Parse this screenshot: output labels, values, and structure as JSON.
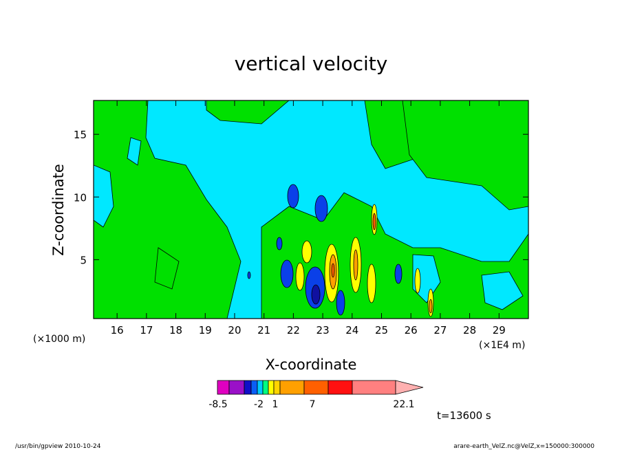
{
  "chart_data": {
    "type": "heatmap",
    "title": "vertical velocity",
    "xlabel": "X-coordinate",
    "ylabel": "Z-coordinate",
    "x_unit_left": "(×1000 m)",
    "x_unit_right": "(×1E4 m)",
    "xlim": [
      15.2,
      30.0
    ],
    "ylim": [
      0.3,
      17.7
    ],
    "x_ticks": [
      16,
      17,
      18,
      19,
      20,
      21,
      22,
      23,
      24,
      25,
      26,
      27,
      28,
      29
    ],
    "y_ticks": [
      5,
      10,
      15
    ],
    "colorbar": {
      "ticks": [
        -8.5,
        -2,
        1,
        7,
        22.1
      ],
      "colors": [
        "#e000c0",
        "#9a10c8",
        "#1010c8",
        "#0a5ef5",
        "#00c8ff",
        "#00ff80",
        "#ffff00",
        "#ffd400",
        "#ffa000",
        "#ff6000",
        "#ff1010",
        "#ff8080",
        "#ffb0b0"
      ]
    },
    "fields": {
      "background": "#00e8ff",
      "positive": "#00e000",
      "strong_positive": "#ffff00",
      "negative": "#0a40e8",
      "strong_negative": "#1010a0"
    }
  },
  "time_label": "t=13600 s",
  "footer": {
    "left": "/usr/bin/gpview  2010-10-24",
    "right": "arare-earth_VelZ.nc@VelZ,x=150000:300000"
  }
}
